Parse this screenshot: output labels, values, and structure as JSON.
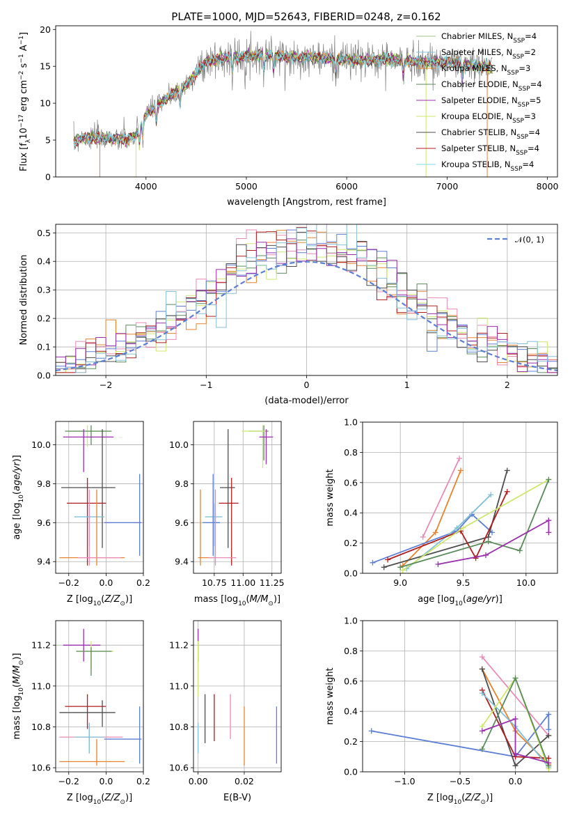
{
  "figure": {
    "title": "PLATE=1000, MJD=52643, FIBERID=0248, z=0.162"
  },
  "colors": {
    "Chabrier MILES": "#9bbf8a",
    "Salpeter MILES": "#82c0d6",
    "Kroupa MILES": "#e8822e",
    "Chabrier ELODIE": "#5a8a5a",
    "Salpeter ELODIE": "#9b2fae",
    "Kroupa ELODIE": "#cde86d",
    "Chabrier STELIB": "#4d4d4d",
    "Salpeter STELIB": "#b01c1c",
    "Kroupa STELIB": "#7fd8e5",
    "Kroupa MILES alt": "#e98bb6",
    "gaussian": "#5b7fd6",
    "observed": "#808080"
  },
  "chart_data": [
    {
      "id": "spectrum",
      "type": "line",
      "title": "PLATE=1000, MJD=52643, FIBERID=0248, z=0.162",
      "xlabel": "wavelength [Angstrom, rest frame]",
      "ylabel": "Flux [f_λ10^-17 erg cm^-2 s^-1 A^-1]",
      "xlim": [
        3100,
        8100
      ],
      "ylim": [
        0,
        20.5
      ],
      "xticks": [
        4000,
        5000,
        6000,
        7000,
        8000
      ],
      "yticks": [
        0,
        5,
        10,
        15,
        20
      ],
      "grid": false,
      "legend_position": "top-right",
      "series": [
        {
          "name": "Chabrier MILES",
          "nssp": "4",
          "color": "#9bbf8a"
        },
        {
          "name": "Salpeter MILES",
          "nssp": "2",
          "color": "#82c0d6"
        },
        {
          "name": "Kroupa MILES",
          "nssp": "3",
          "color": "#e8822e"
        },
        {
          "name": "Chabrier ELODIE",
          "nssp": "4",
          "color": "#5a8a5a"
        },
        {
          "name": "Salpeter ELODIE",
          "nssp": "5",
          "color": "#9b2fae"
        },
        {
          "name": "Kroupa ELODIE",
          "nssp": "3",
          "color": "#cde86d"
        },
        {
          "name": "Chabrier STELIB",
          "nssp": "4",
          "color": "#4d4d4d"
        },
        {
          "name": "Salpeter STELIB",
          "nssp": "4",
          "color": "#b01c1c"
        },
        {
          "name": "Kroupa STELIB",
          "nssp": "4",
          "color": "#7fd8e5"
        }
      ],
      "continuum": [
        [
          3280,
          4.8
        ],
        [
          3400,
          5.4
        ],
        [
          3600,
          5.2
        ],
        [
          3800,
          5.1
        ],
        [
          3900,
          5.6
        ],
        [
          4000,
          8.5
        ],
        [
          4200,
          10.5
        ],
        [
          4400,
          12.5
        ],
        [
          4600,
          15.6
        ],
        [
          4800,
          16.2
        ],
        [
          5000,
          16.3
        ],
        [
          5200,
          16.6
        ],
        [
          5400,
          16.3
        ],
        [
          5600,
          16.2
        ],
        [
          5800,
          16.1
        ],
        [
          6000,
          15.9
        ],
        [
          6200,
          15.8
        ],
        [
          6400,
          16.0
        ],
        [
          6600,
          15.8
        ],
        [
          6800,
          15.5
        ],
        [
          7000,
          15.6
        ],
        [
          7200,
          15.2
        ],
        [
          7400,
          14.9
        ],
        [
          7450,
          14.8
        ]
      ]
    },
    {
      "id": "residuals",
      "type": "line",
      "xlabel": "(data-model)/error",
      "ylabel": "Normed distribution",
      "xlim": [
        -2.5,
        2.5
      ],
      "ylim": [
        0,
        0.53
      ],
      "xticks": [
        -2,
        -1,
        0,
        1,
        2
      ],
      "yticks": [
        0.0,
        0.1,
        0.2,
        0.3,
        0.4,
        0.5
      ],
      "grid": true,
      "legend_position": "top-right",
      "gaussian_label": "𝒩(0, 1)",
      "gaussian_mean": 0,
      "gaussian_sigma": 1,
      "bin_width": 0.1,
      "histogram_colors": [
        "#5a8a5a",
        "#e8822e",
        "#e98bb6",
        "#cde86d",
        "#5b7fd6",
        "#b01c1c",
        "#4d4d4d",
        "#9b2fae",
        "#82c0d6"
      ]
    },
    {
      "id": "age-vs-Z",
      "type": "scatter",
      "xlabel": "Z [log10(Z/Z⊙)]",
      "ylabel": "age  [log10(age/yr)]",
      "xlim": [
        -0.27,
        0.2
      ],
      "ylim": [
        9.34,
        10.12
      ],
      "xticks": [
        -0.2,
        0.0,
        0.2
      ],
      "yticks": [
        9.4,
        9.6,
        9.8,
        10.0
      ],
      "grid": true,
      "points": [
        {
          "x": -0.1,
          "y": 10.07,
          "xe": [
            -0.2,
            0.02
          ],
          "ye": [
            9.99,
            10.1
          ],
          "color": "#cde86d"
        },
        {
          "x": -0.08,
          "y": 10.07,
          "xe": [
            -0.22,
            0.03
          ],
          "ye": [
            10.0,
            10.1
          ],
          "color": "#5a8a5a"
        },
        {
          "x": -0.12,
          "y": 10.04,
          "xe": [
            -0.23,
            0.04
          ],
          "ye": [
            9.86,
            10.08
          ],
          "color": "#9b2fae"
        },
        {
          "x": -0.02,
          "y": 9.78,
          "xe": [
            -0.24,
            0.05
          ],
          "ye": [
            9.47,
            10.08
          ],
          "color": "#4d4d4d"
        },
        {
          "x": -0.1,
          "y": 9.7,
          "xe": [
            -0.21,
            0.0
          ],
          "ye": [
            9.38,
            9.83
          ],
          "color": "#b01c1c"
        },
        {
          "x": -0.09,
          "y": 9.63,
          "xe": [
            -0.17,
            -0.01
          ],
          "ye": [
            9.48,
            9.7
          ],
          "color": "#82c0d6"
        },
        {
          "x": 0.18,
          "y": 9.6,
          "xe": [
            -0.01,
            0.19
          ],
          "ye": [
            9.43,
            9.85
          ],
          "color": "#5b7fd6"
        },
        {
          "x": -0.05,
          "y": 9.42,
          "xe": [
            -0.25,
            0.1
          ],
          "ye": [
            9.38,
            9.77
          ],
          "color": "#e8822e"
        },
        {
          "x": -0.09,
          "y": 9.42,
          "xe": [
            -0.15,
            0.08
          ],
          "ye": [
            9.38,
            9.77
          ],
          "color": "#e98bb6"
        }
      ]
    },
    {
      "id": "age-vs-mass",
      "type": "scatter",
      "xlabel": "mass [log10(M/M⊙)]",
      "ylabel": "",
      "xlim": [
        10.57,
        11.33
      ],
      "ylim": [
        9.34,
        10.12
      ],
      "xticks": [
        10.75,
        11.0,
        11.25
      ],
      "yticks": [
        9.4,
        9.6,
        9.8,
        10.0
      ],
      "grid": true,
      "points": [
        {
          "x": 11.18,
          "y": 10.07,
          "xe": [
            11.05,
            11.22
          ],
          "ye": [
            9.92,
            10.1
          ],
          "color": "#5a8a5a"
        },
        {
          "x": 11.17,
          "y": 10.07,
          "xe": [
            10.99,
            11.2
          ],
          "ye": [
            9.88,
            10.1
          ],
          "color": "#cde86d"
        },
        {
          "x": 11.2,
          "y": 10.04,
          "xe": [
            11.14,
            11.26
          ],
          "ye": [
            9.9,
            10.08
          ],
          "color": "#9b2fae"
        },
        {
          "x": 10.87,
          "y": 9.78,
          "xe": [
            10.8,
            10.93
          ],
          "ye": [
            9.47,
            10.08
          ],
          "color": "#4d4d4d"
        },
        {
          "x": 10.9,
          "y": 9.7,
          "xe": [
            10.79,
            10.96
          ],
          "ye": [
            9.38,
            9.83
          ],
          "color": "#b01c1c"
        },
        {
          "x": 10.75,
          "y": 9.63,
          "xe": [
            10.67,
            10.82
          ],
          "ye": [
            9.48,
            9.7
          ],
          "color": "#82c0d6"
        },
        {
          "x": 10.74,
          "y": 9.6,
          "xe": [
            10.65,
            10.8
          ],
          "ye": [
            9.43,
            9.85
          ],
          "color": "#5b7fd6"
        },
        {
          "x": 10.63,
          "y": 9.42,
          "xe": [
            10.61,
            10.74
          ],
          "ye": [
            9.38,
            9.77
          ],
          "color": "#e8822e"
        },
        {
          "x": 10.76,
          "y": 9.42,
          "xe": [
            10.7,
            10.94
          ],
          "ye": [
            9.38,
            9.77
          ],
          "color": "#e98bb6"
        }
      ]
    },
    {
      "id": "mass-weight-vs-age",
      "type": "line",
      "xlabel": "age  [log10(age/yr)]",
      "ylabel": "mass weight",
      "xlim": [
        8.7,
        10.25
      ],
      "ylim": [
        0,
        1.0
      ],
      "xticks": [
        9.0,
        9.5,
        10.0
      ],
      "yticks": [
        0.0,
        0.2,
        0.4,
        0.6,
        0.8,
        1.0
      ],
      "grid": true,
      "series": [
        {
          "color": "#e98bb6",
          "x": [
            9.18,
            9.47
          ],
          "y": [
            0.24,
            0.76
          ]
        },
        {
          "color": "#e8822e",
          "x": [
            9.02,
            9.28,
            9.48
          ],
          "y": [
            0.05,
            0.27,
            0.68
          ]
        },
        {
          "color": "#5b7fd6",
          "x": [
            8.78,
            9.45,
            9.57,
            9.73
          ],
          "y": [
            0.07,
            0.28,
            0.39,
            0.27
          ]
        },
        {
          "color": "#82c0d6",
          "x": [
            9.05,
            9.45,
            9.72
          ],
          "y": [
            0.03,
            0.3,
            0.52
          ]
        },
        {
          "color": "#4d4d4d",
          "x": [
            8.87,
            9.7,
            9.85
          ],
          "y": [
            0.04,
            0.24,
            0.68
          ]
        },
        {
          "color": "#b01c1c",
          "x": [
            8.9,
            9.48,
            9.6,
            9.85
          ],
          "y": [
            0.09,
            0.28,
            0.1,
            0.54
          ]
        },
        {
          "color": "#cde86d",
          "x": [
            9.02,
            9.5,
            10.18
          ],
          "y": [
            0.02,
            0.3,
            0.62
          ]
        },
        {
          "color": "#5a8a5a",
          "x": [
            9.0,
            9.7,
            9.95,
            10.18
          ],
          "y": [
            0.04,
            0.21,
            0.15,
            0.62
          ]
        },
        {
          "color": "#9b2fae",
          "x": [
            9.3,
            9.68,
            10.18,
            10.18
          ],
          "y": [
            0.06,
            0.12,
            0.35,
            0.27
          ]
        }
      ]
    },
    {
      "id": "mass-vs-Z",
      "type": "scatter",
      "xlabel": "Z [log10(Z/Z⊙)]",
      "ylabel": "mass [log10(M/M⊙)]",
      "xlim": [
        -0.27,
        0.2
      ],
      "ylim": [
        10.58,
        11.32
      ],
      "xticks": [
        -0.2,
        0.0,
        0.2
      ],
      "yticks": [
        10.6,
        10.8,
        11.0,
        11.2
      ],
      "grid": true,
      "points": [
        {
          "x": -0.12,
          "y": 11.2,
          "xe": [
            -0.23,
            -0.03
          ],
          "ye": [
            11.12,
            11.28
          ],
          "color": "#9b2fae"
        },
        {
          "x": -0.08,
          "y": 11.17,
          "xe": [
            -0.16,
            0.04
          ],
          "ye": [
            11.08,
            11.22
          ],
          "color": "#cde86d"
        },
        {
          "x": -0.08,
          "y": 11.17,
          "xe": [
            -0.16,
            0.03
          ],
          "ye": [
            11.05,
            11.19
          ],
          "color": "#5a8a5a"
        },
        {
          "x": -0.1,
          "y": 10.9,
          "xe": [
            -0.22,
            0.0
          ],
          "ye": [
            10.79,
            10.96
          ],
          "color": "#b01c1c"
        },
        {
          "x": -0.02,
          "y": 10.87,
          "xe": [
            -0.25,
            0.05
          ],
          "ye": [
            10.8,
            10.93
          ],
          "color": "#4d4d4d"
        },
        {
          "x": -0.09,
          "y": 10.75,
          "xe": [
            -0.25,
            0.09
          ],
          "ye": [
            10.67,
            10.82
          ],
          "color": "#e98bb6"
        },
        {
          "x": -0.09,
          "y": 10.75,
          "xe": [
            -0.17,
            -0.01
          ],
          "ye": [
            10.67,
            10.82
          ],
          "color": "#82c0d6"
        },
        {
          "x": 0.18,
          "y": 10.74,
          "xe": [
            -0.01,
            0.19
          ],
          "ye": [
            10.62,
            10.9
          ],
          "color": "#5b7fd6"
        },
        {
          "x": -0.05,
          "y": 10.63,
          "xe": [
            -0.25,
            0.1
          ],
          "ye": [
            10.61,
            10.74
          ],
          "color": "#e8822e"
        }
      ]
    },
    {
      "id": "mass-vs-EBV",
      "type": "scatter",
      "xlabel": "E(B-V)",
      "ylabel": "",
      "xlim": [
        -0.002,
        0.036
      ],
      "ylim": [
        10.58,
        11.32
      ],
      "xticks": [
        0.0,
        0.02
      ],
      "yticks": [
        10.6,
        10.8,
        11.0,
        11.2
      ],
      "grid": true,
      "points": [
        {
          "x": 0.0,
          "ye": [
            11.12,
            11.28
          ],
          "color": "#9b2fae"
        },
        {
          "x": 0.0,
          "ye": [
            10.95,
            11.22
          ],
          "color": "#cde86d"
        },
        {
          "x": 0.0,
          "ye": [
            10.67,
            10.82
          ],
          "color": "#82c0d6"
        },
        {
          "x": 0.003,
          "ye": [
            10.72,
            10.96
          ],
          "color": "#4d4d4d"
        },
        {
          "x": 0.007,
          "ye": [
            10.73,
            10.96
          ],
          "color": "#b01c1c"
        },
        {
          "x": 0.014,
          "ye": [
            10.74,
            10.96
          ],
          "color": "#e98bb6"
        },
        {
          "x": 0.02,
          "ye": [
            10.61,
            10.9
          ],
          "color": "#e8822e"
        },
        {
          "x": 0.034,
          "ye": [
            10.62,
            10.9
          ],
          "color": "#5b7fd6"
        }
      ]
    },
    {
      "id": "mass-weight-vs-Z",
      "type": "line",
      "xlabel": "Z [log10(Z/Z⊙)]",
      "ylabel": "mass weight",
      "xlim": [
        -1.38,
        0.38
      ],
      "ylim": [
        0,
        1.0
      ],
      "xticks": [
        -1.0,
        -0.5,
        0.0
      ],
      "yticks": [
        0.0,
        0.2,
        0.4,
        0.6,
        0.8,
        1.0
      ],
      "grid": true,
      "series": [
        {
          "color": "#5b7fd6",
          "x": [
            -1.3,
            0.0,
            0.3,
            0.3
          ],
          "y": [
            0.27,
            0.1,
            0.38,
            0.28
          ]
        },
        {
          "color": "#e98bb6",
          "x": [
            -0.3,
            0.3
          ],
          "y": [
            0.76,
            0.24
          ]
        },
        {
          "color": "#e8822e",
          "x": [
            -0.3,
            0.0,
            0.3
          ],
          "y": [
            0.68,
            0.27,
            0.05
          ]
        },
        {
          "color": "#4d4d4d",
          "x": [
            -0.3,
            0.0,
            0.3
          ],
          "y": [
            0.68,
            0.04,
            0.24
          ]
        },
        {
          "color": "#b01c1c",
          "x": [
            -0.3,
            0.0,
            0.3
          ],
          "y": [
            0.54,
            0.1,
            0.09
          ]
        },
        {
          "color": "#82c0d6",
          "x": [
            -0.3,
            0.0,
            0.3
          ],
          "y": [
            0.52,
            0.3,
            0.03
          ]
        },
        {
          "color": "#cde86d",
          "x": [
            -0.3,
            0.0,
            0.3
          ],
          "y": [
            0.3,
            0.62,
            0.02
          ]
        },
        {
          "color": "#5a8a5a",
          "x": [
            -0.3,
            0.0,
            0.3
          ],
          "y": [
            0.15,
            0.62,
            0.04
          ]
        },
        {
          "color": "#9b2fae",
          "x": [
            -0.3,
            0.0,
            0.0,
            0.3
          ],
          "y": [
            0.27,
            0.35,
            0.12,
            0.06
          ]
        }
      ]
    }
  ]
}
